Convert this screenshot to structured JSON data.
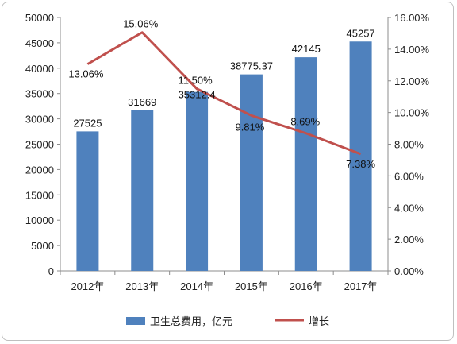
{
  "chart_data": {
    "type": "bar",
    "categories": [
      "2012年",
      "2013年",
      "2014年",
      "2015年",
      "2016年",
      "2017年"
    ],
    "series": [
      {
        "name": "卫生总费用，亿元",
        "type": "bar",
        "axis": "left",
        "values": [
          27525,
          31669,
          35312.4,
          38775.37,
          42145,
          45257
        ],
        "labels": [
          "27525",
          "31669",
          "35312.4",
          "38775.37",
          "42145",
          "45257"
        ],
        "color": "#4f81bd"
      },
      {
        "name": "增长",
        "type": "line",
        "axis": "right",
        "values": [
          13.06,
          15.06,
          11.5,
          9.81,
          8.69,
          7.38
        ],
        "labels": [
          "13.06%",
          "15.06%",
          "11.50%",
          "9.81%",
          "8.69%",
          "7.38%"
        ],
        "color": "#c0504d"
      }
    ],
    "ylim_left": [
      0,
      50000
    ],
    "yticks_left": [
      "0",
      "5000",
      "10000",
      "15000",
      "20000",
      "25000",
      "30000",
      "35000",
      "40000",
      "45000",
      "50000"
    ],
    "ylim_right": [
      0,
      16
    ],
    "yticks_right": [
      "0.00%",
      "2.00%",
      "4.00%",
      "6.00%",
      "8.00%",
      "10.00%",
      "12.00%",
      "14.00%",
      "16.00%"
    ],
    "legend_position": "bottom",
    "grid": false
  }
}
